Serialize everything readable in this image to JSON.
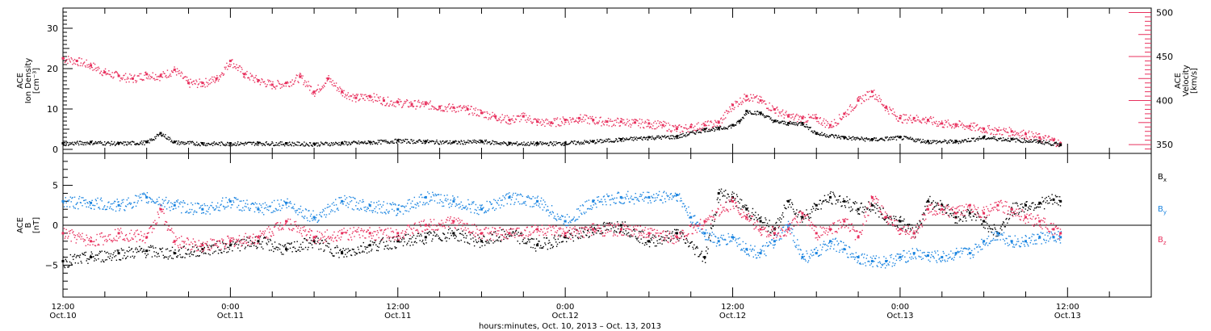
{
  "chart_data": [
    {
      "type": "scatter",
      "panel": "top",
      "left_axis": {
        "label_line1": "ACE",
        "label_line2": "Ion Density",
        "label_line3": "[cm⁻³]",
        "ylim": [
          -1,
          35
        ],
        "ticks": [
          0,
          10,
          20,
          30
        ],
        "tick_labels": [
          "0",
          "10",
          "20",
          "30"
        ],
        "color": "#000000"
      },
      "right_axis": {
        "label_line1": "ACE",
        "label_line2": "Velocity",
        "label_line3": "[km/s]",
        "ylim": [
          340,
          505
        ],
        "ticks": [
          350,
          400,
          450,
          500
        ],
        "tick_labels": [
          "350",
          "400",
          "450",
          "500"
        ],
        "color": "#e8315e"
      },
      "series": [
        {
          "axis": "left",
          "color": "#000000",
          "x_hours": [
            0,
            2,
            4,
            6,
            7,
            8,
            10,
            12,
            14,
            16,
            18,
            20,
            22,
            24,
            26,
            28,
            30,
            32,
            34,
            36,
            38,
            40,
            42,
            44,
            46,
            47,
            48,
            48.5,
            49,
            50,
            51,
            52,
            53,
            54,
            56,
            58,
            60,
            62,
            64,
            66,
            68,
            70,
            71.5
          ],
          "values": [
            1.5,
            1.8,
            1.5,
            1.8,
            4,
            1.8,
            1.5,
            1.5,
            1.6,
            1.5,
            1.4,
            1.6,
            1.8,
            2.2,
            2.0,
            1.8,
            2.0,
            1.5,
            1.5,
            1.6,
            2.0,
            2.5,
            3.0,
            3.2,
            5.0,
            5.2,
            6.0,
            7,
            9.5,
            9.0,
            7.0,
            6.5,
            6.5,
            4.0,
            3.0,
            2.5,
            3.0,
            2.0,
            2.0,
            3.0,
            2.5,
            2.0,
            1.2
          ]
        },
        {
          "axis": "right",
          "color": "#e8315e",
          "x_hours": [
            0,
            1,
            2,
            3,
            4,
            5,
            6,
            7,
            8,
            9,
            10,
            11,
            12,
            13,
            14,
            15,
            16,
            17,
            18,
            19,
            20,
            21,
            22,
            23,
            24,
            25,
            26,
            27,
            28,
            29,
            30,
            31,
            32,
            33,
            34,
            35,
            36,
            37,
            38,
            39,
            40,
            41,
            42,
            43,
            44,
            45,
            46,
            47,
            48,
            49,
            50,
            51,
            52,
            53,
            54,
            55,
            56,
            57,
            58,
            59,
            60,
            61,
            62,
            63,
            64,
            65,
            66,
            67,
            68,
            69,
            70,
            71,
            71.5
          ],
          "values": [
            448,
            445,
            440,
            432,
            428,
            425,
            430,
            428,
            435,
            420,
            420,
            425,
            445,
            430,
            423,
            418,
            420,
            427,
            410,
            425,
            410,
            403,
            405,
            400,
            398,
            396,
            396,
            393,
            392,
            390,
            386,
            382,
            378,
            382,
            376,
            375,
            378,
            380,
            378,
            376,
            376,
            375,
            374,
            372,
            368,
            370,
            372,
            375,
            395,
            405,
            400,
            390,
            382,
            380,
            380,
            372,
            385,
            400,
            410,
            392,
            380,
            380,
            378,
            374,
            373,
            371,
            368,
            366,
            365,
            362,
            358,
            355,
            350
          ]
        }
      ]
    },
    {
      "type": "scatter",
      "panel": "bottom",
      "left_axis": {
        "label_line1": "ACE",
        "label_line2": "B",
        "label_line3": "[nT]",
        "ylim": [
          -9,
          9
        ],
        "ticks": [
          -5,
          0,
          5
        ],
        "tick_labels": [
          "−5",
          "0",
          "5"
        ]
      },
      "zero_line": true,
      "series": [
        {
          "name": "B",
          "subscript": "x",
          "color": "#000000",
          "x_hours": [
            0,
            2,
            4,
            6,
            8,
            10,
            12,
            14,
            16,
            18,
            20,
            22,
            24,
            26,
            28,
            30,
            32,
            34,
            36,
            38,
            40,
            42,
            44,
            46,
            47,
            48,
            49,
            50,
            51,
            52,
            53,
            54,
            55,
            56,
            57,
            58,
            59,
            60,
            61,
            62,
            63,
            64,
            65,
            66,
            67,
            68,
            69,
            70,
            71,
            71.5
          ],
          "values": [
            -4.5,
            -4.0,
            -3.5,
            -3.2,
            -3.5,
            -3.0,
            -2.5,
            -2.0,
            -3.0,
            -2.0,
            -3.5,
            -2.5,
            -2.0,
            -1.5,
            -1.0,
            -2.0,
            -1.0,
            -2.5,
            -1.5,
            -0.5,
            0.0,
            -2.0,
            -1.0,
            -4.0,
            4.0,
            3.5,
            2.0,
            0.5,
            -0.5,
            3.0,
            1.0,
            2.5,
            3.5,
            3.0,
            2.0,
            2.5,
            1.0,
            0.5,
            -1.0,
            3.0,
            2.5,
            1.0,
            1.5,
            0.5,
            -1.0,
            2.0,
            2.5,
            2.8,
            3.2,
            3.0
          ]
        },
        {
          "name": "B",
          "subscript": "y",
          "color": "#1a84e0",
          "x_hours": [
            0,
            2,
            4,
            6,
            8,
            10,
            12,
            14,
            16,
            18,
            20,
            22,
            24,
            26,
            28,
            30,
            32,
            34,
            36,
            38,
            40,
            42,
            44,
            45,
            46,
            47,
            48,
            49,
            50,
            51,
            52,
            53,
            54,
            55,
            56,
            57,
            58,
            59,
            60,
            61,
            62,
            63,
            64,
            65,
            66,
            67,
            68,
            69,
            70,
            71,
            71.5
          ],
          "values": [
            3.0,
            2.8,
            2.5,
            3.5,
            2.5,
            2.0,
            3.0,
            2.0,
            2.8,
            1.0,
            3.0,
            2.5,
            2.0,
            3.5,
            3.0,
            2.0,
            3.5,
            3.0,
            0.5,
            3.0,
            3.5,
            3.5,
            3.8,
            1.0,
            -1.0,
            -2.0,
            -1.5,
            -3.0,
            -3.5,
            -2.0,
            0.0,
            -4.0,
            -3.5,
            -2.0,
            -3.0,
            -4.0,
            -4.5,
            -4.5,
            -4.0,
            -3.5,
            -3.8,
            -4.0,
            -3.5,
            -3.5,
            -2.0,
            -1.0,
            -2.0,
            -2.0,
            -1.5,
            -1.5,
            -1.5
          ]
        },
        {
          "name": "B",
          "subscript": "z",
          "color": "#e8315e",
          "x_hours": [
            0,
            2,
            4,
            6,
            7,
            8,
            10,
            12,
            14,
            16,
            18,
            20,
            22,
            24,
            26,
            28,
            30,
            32,
            34,
            36,
            38,
            40,
            42,
            44,
            46,
            48,
            49,
            50,
            51,
            52,
            53,
            54,
            55,
            56,
            57,
            58,
            59,
            60,
            61,
            62,
            63,
            64,
            65,
            66,
            67,
            68,
            69,
            70,
            71,
            71.5
          ],
          "values": [
            -1.0,
            -2.0,
            -1.0,
            -1.5,
            2.0,
            -2.0,
            -2.5,
            -2.0,
            -1.5,
            0.5,
            -1.5,
            -1.0,
            -1.0,
            -1.0,
            0.0,
            0.5,
            -1.0,
            -1.0,
            -0.5,
            -1.0,
            -0.5,
            -0.5,
            -1.0,
            -1.5,
            0.5,
            3.0,
            1.0,
            -0.5,
            -1.0,
            -0.5,
            1.5,
            -1.0,
            -0.5,
            0.5,
            -1.5,
            3.5,
            1.0,
            -0.5,
            -1.0,
            2.0,
            2.0,
            1.5,
            2.5,
            1.5,
            2.5,
            2.0,
            1.0,
            0.5,
            -0.5,
            -1.0
          ]
        }
      ]
    }
  ],
  "x_axis": {
    "range_hours": [
      0,
      78
    ],
    "major_ticks": [
      {
        "hour": 0,
        "time": "12:00",
        "date": "Oct.10"
      },
      {
        "hour": 12,
        "time": "0:00",
        "date": "Oct.11"
      },
      {
        "hour": 24,
        "time": "12:00",
        "date": "Oct.11"
      },
      {
        "hour": 36,
        "time": "0:00",
        "date": "Oct.12"
      },
      {
        "hour": 48,
        "time": "12:00",
        "date": "Oct.12"
      },
      {
        "hour": 60,
        "time": "0:00",
        "date": "Oct.13"
      },
      {
        "hour": 72,
        "time": "12:00",
        "date": "Oct.13"
      }
    ],
    "title": "hours:minutes, Oct. 10, 2013 – Oct. 13, 2013"
  }
}
